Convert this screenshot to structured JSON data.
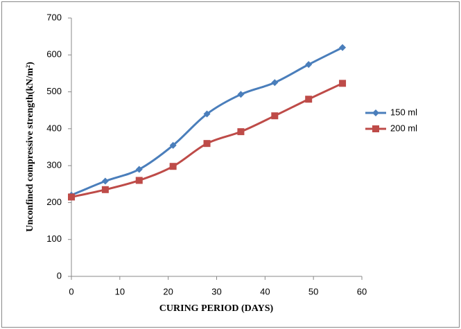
{
  "chart_data": {
    "type": "line",
    "smooth": true,
    "x_label": "CURING PERIOD (DAYS)",
    "y_label": "Unconfined compressive strength(kN/m²)",
    "x": [
      0,
      7,
      14,
      21,
      28,
      35,
      42,
      49,
      56
    ],
    "series": [
      {
        "name": "150 ml",
        "color": "#4a7ebb",
        "marker": "diamond",
        "values": [
          220,
          258,
          290,
          355,
          440,
          493,
          525,
          574,
          620
        ]
      },
      {
        "name": "200 ml",
        "color": "#be4b48",
        "marker": "square",
        "values": [
          215,
          235,
          260,
          298,
          360,
          392,
          435,
          480,
          523
        ]
      }
    ],
    "xlim": [
      0,
      60
    ],
    "xticks": [
      0,
      10,
      20,
      30,
      40,
      50,
      60
    ],
    "ylim": [
      0,
      700
    ],
    "yticks": [
      0,
      100,
      200,
      300,
      400,
      500,
      600,
      700
    ],
    "grid": false,
    "legend": "right"
  }
}
